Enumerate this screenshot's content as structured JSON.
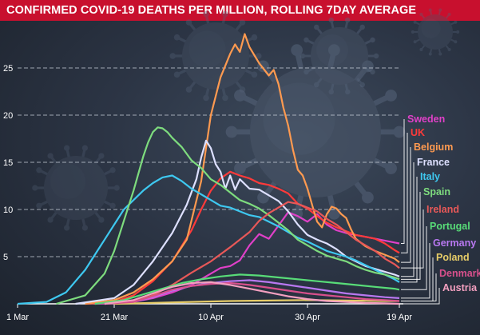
{
  "title": "CONFIRMED COVID-19 DEATHS PER MILLION, ROLLING 7DAY AVERAGE",
  "chart_data": {
    "type": "line",
    "title": "CONFIRMED COVID-19 DEATHS PER MILLION, ROLLING 7DAY AVERAGE",
    "xlabel": "",
    "ylabel": "",
    "x_ticks": [
      {
        "label": "1 Mar",
        "day": 0
      },
      {
        "label": "21 Mar",
        "day": 20
      },
      {
        "label": "10 Apr",
        "day": 40
      },
      {
        "label": "30 Apr",
        "day": 60
      },
      {
        "label": "19 Apr",
        "day": 79
      }
    ],
    "y_ticks": [
      5,
      10,
      15,
      20,
      25
    ],
    "ylim": [
      0,
      29
    ],
    "grid": "horizontal dashed",
    "legend": "right",
    "series": [
      {
        "name": "Sweden",
        "color": "#e040c8",
        "values": [
          [
            16,
            0
          ],
          [
            24,
            0.2
          ],
          [
            28,
            0.6
          ],
          [
            32,
            1.2
          ],
          [
            36,
            2
          ],
          [
            38,
            2.6
          ],
          [
            40,
            3.2
          ],
          [
            42,
            3.8
          ],
          [
            44,
            4
          ],
          [
            46,
            4.6
          ],
          [
            48,
            6.2
          ],
          [
            50,
            7.4
          ],
          [
            52,
            6.9
          ],
          [
            54,
            8.3
          ],
          [
            56,
            9.7
          ],
          [
            58,
            9.3
          ],
          [
            60,
            8.7
          ],
          [
            62,
            9.5
          ],
          [
            64,
            8.4
          ],
          [
            66,
            7.8
          ],
          [
            68,
            7.5
          ],
          [
            70,
            7.3
          ],
          [
            72,
            7.1
          ],
          [
            74,
            6.9
          ],
          [
            76,
            6.7
          ],
          [
            78,
            6.5
          ],
          [
            79,
            6.4
          ]
        ]
      },
      {
        "name": "UK",
        "color": "#ff3a3a",
        "values": [
          [
            14,
            0
          ],
          [
            20,
            0.2
          ],
          [
            24,
            0.9
          ],
          [
            28,
            2.4
          ],
          [
            32,
            4.5
          ],
          [
            36,
            7.8
          ],
          [
            38,
            10
          ],
          [
            40,
            12
          ],
          [
            42,
            13.3
          ],
          [
            44,
            14
          ],
          [
            46,
            13.6
          ],
          [
            48,
            13.3
          ],
          [
            50,
            12.8
          ],
          [
            52,
            12.6
          ],
          [
            54,
            12.2
          ],
          [
            56,
            11.7
          ],
          [
            58,
            10.6
          ],
          [
            60,
            10.1
          ],
          [
            62,
            9.3
          ],
          [
            64,
            8.6
          ],
          [
            66,
            8.1
          ],
          [
            68,
            7.7
          ],
          [
            70,
            7.3
          ],
          [
            72,
            7.1
          ],
          [
            74,
            6.9
          ],
          [
            76,
            6.4
          ],
          [
            78,
            5.7
          ],
          [
            79,
            5.4
          ]
        ]
      },
      {
        "name": "Belgium",
        "color": "#ff9a50",
        "values": [
          [
            14,
            0
          ],
          [
            20,
            0.4
          ],
          [
            24,
            1.2
          ],
          [
            28,
            2.6
          ],
          [
            32,
            4.5
          ],
          [
            35,
            6.8
          ],
          [
            38,
            13
          ],
          [
            40,
            20
          ],
          [
            42,
            24
          ],
          [
            44,
            26.5
          ],
          [
            45,
            27.5
          ],
          [
            46,
            26.7
          ],
          [
            47,
            28.6
          ],
          [
            48,
            27.2
          ],
          [
            50,
            25.5
          ],
          [
            52,
            24.2
          ],
          [
            53,
            24.8
          ],
          [
            54,
            23.3
          ],
          [
            55,
            20.8
          ],
          [
            56,
            18.9
          ],
          [
            57,
            16.3
          ],
          [
            58,
            14.2
          ],
          [
            59,
            13.6
          ],
          [
            60,
            12.2
          ],
          [
            61,
            10.4
          ],
          [
            62,
            8.7
          ],
          [
            63,
            8.1
          ],
          [
            64,
            9.5
          ],
          [
            65,
            10.3
          ],
          [
            66,
            10.1
          ],
          [
            67,
            9.5
          ],
          [
            68,
            9.1
          ],
          [
            69,
            7.9
          ],
          [
            70,
            6.9
          ],
          [
            72,
            6.1
          ],
          [
            74,
            5.6
          ],
          [
            76,
            5.2
          ],
          [
            78,
            4.8
          ],
          [
            79,
            4.4
          ]
        ]
      },
      {
        "name": "France",
        "color": "#dde0ff",
        "values": [
          [
            12,
            0
          ],
          [
            20,
            0.6
          ],
          [
            24,
            2
          ],
          [
            28,
            4.5
          ],
          [
            32,
            7.5
          ],
          [
            35,
            10.5
          ],
          [
            37,
            13.2
          ],
          [
            38,
            15.5
          ],
          [
            39,
            17.3
          ],
          [
            40,
            16.5
          ],
          [
            41,
            14.8
          ],
          [
            42,
            14
          ],
          [
            43,
            12.2
          ],
          [
            44,
            13.6
          ],
          [
            45,
            12.1
          ],
          [
            46,
            13.2
          ],
          [
            48,
            12.2
          ],
          [
            50,
            12.1
          ],
          [
            52,
            11.5
          ],
          [
            54,
            10.9
          ],
          [
            56,
            9.8
          ],
          [
            58,
            8.4
          ],
          [
            60,
            7.3
          ],
          [
            62,
            6.8
          ],
          [
            64,
            6.4
          ],
          [
            66,
            5.8
          ],
          [
            68,
            5
          ],
          [
            70,
            4.5
          ],
          [
            72,
            4
          ],
          [
            74,
            3.7
          ],
          [
            76,
            3.4
          ],
          [
            78,
            3.1
          ],
          [
            79,
            2.9
          ]
        ]
      },
      {
        "name": "Italy",
        "color": "#3ec8f0",
        "values": [
          [
            0,
            0
          ],
          [
            6,
            0.2
          ],
          [
            10,
            1.2
          ],
          [
            14,
            3.6
          ],
          [
            18,
            6.8
          ],
          [
            22,
            10
          ],
          [
            26,
            12
          ],
          [
            28,
            12.8
          ],
          [
            30,
            13.4
          ],
          [
            32,
            13.6
          ],
          [
            34,
            13
          ],
          [
            36,
            12.2
          ],
          [
            38,
            11.6
          ],
          [
            40,
            11
          ],
          [
            42,
            10.4
          ],
          [
            44,
            10.2
          ],
          [
            46,
            9.8
          ],
          [
            48,
            9.4
          ],
          [
            50,
            9.2
          ],
          [
            52,
            8.7
          ],
          [
            54,
            8.2
          ],
          [
            56,
            7.6
          ],
          [
            58,
            7
          ],
          [
            60,
            6.6
          ],
          [
            62,
            6.1
          ],
          [
            64,
            5.6
          ],
          [
            66,
            5.3
          ],
          [
            68,
            5
          ],
          [
            70,
            4.6
          ],
          [
            72,
            4.1
          ],
          [
            74,
            3.6
          ],
          [
            76,
            3.1
          ],
          [
            78,
            2.6
          ],
          [
            79,
            2.3
          ]
        ]
      },
      {
        "name": "Spain",
        "color": "#7edc7e",
        "values": [
          [
            8,
            0
          ],
          [
            14,
            0.9
          ],
          [
            18,
            3.2
          ],
          [
            20,
            5.6
          ],
          [
            22,
            8.8
          ],
          [
            24,
            12
          ],
          [
            26,
            15.6
          ],
          [
            27,
            17.1
          ],
          [
            28,
            18.2
          ],
          [
            29,
            18.7
          ],
          [
            30,
            18.6
          ],
          [
            31,
            18.2
          ],
          [
            32,
            17.6
          ],
          [
            34,
            16.6
          ],
          [
            36,
            15.2
          ],
          [
            38,
            14.4
          ],
          [
            40,
            13.2
          ],
          [
            42,
            12.6
          ],
          [
            44,
            11.8
          ],
          [
            46,
            11
          ],
          [
            48,
            10.6
          ],
          [
            50,
            10.1
          ],
          [
            52,
            9.4
          ],
          [
            54,
            8.6
          ],
          [
            56,
            7.8
          ],
          [
            58,
            6.8
          ],
          [
            60,
            6.2
          ],
          [
            62,
            5.6
          ],
          [
            64,
            5.1
          ],
          [
            66,
            4.8
          ],
          [
            68,
            4.5
          ],
          [
            70,
            4
          ],
          [
            72,
            3.6
          ],
          [
            74,
            3.3
          ],
          [
            76,
            3.1
          ],
          [
            78,
            2.8
          ],
          [
            79,
            2.6
          ]
        ]
      },
      {
        "name": "Ireland",
        "color": "#e85858",
        "values": [
          [
            18,
            0
          ],
          [
            24,
            0.2
          ],
          [
            28,
            0.9
          ],
          [
            32,
            2
          ],
          [
            36,
            3.3
          ],
          [
            40,
            4.5
          ],
          [
            44,
            6
          ],
          [
            48,
            7.6
          ],
          [
            50,
            8.8
          ],
          [
            52,
            9.6
          ],
          [
            54,
            10.2
          ],
          [
            56,
            10.8
          ],
          [
            58,
            10.6
          ],
          [
            60,
            10.2
          ],
          [
            62,
            9.8
          ],
          [
            64,
            9
          ],
          [
            66,
            8.4
          ],
          [
            68,
            7.6
          ],
          [
            70,
            6.8
          ],
          [
            72,
            6.2
          ],
          [
            74,
            5.6
          ],
          [
            76,
            4.8
          ],
          [
            78,
            4.2
          ],
          [
            79,
            3.8
          ]
        ]
      },
      {
        "name": "Portugal",
        "color": "#58dc78",
        "values": [
          [
            16,
            0
          ],
          [
            22,
            0.4
          ],
          [
            26,
            1
          ],
          [
            30,
            1.6
          ],
          [
            34,
            2.2
          ],
          [
            38,
            2.6
          ],
          [
            42,
            2.9
          ],
          [
            46,
            3.1
          ],
          [
            50,
            3
          ],
          [
            54,
            2.8
          ],
          [
            58,
            2.6
          ],
          [
            62,
            2.4
          ],
          [
            66,
            2.2
          ],
          [
            70,
            2
          ],
          [
            74,
            1.8
          ],
          [
            78,
            1.6
          ],
          [
            79,
            1.5
          ]
        ]
      },
      {
        "name": "Germany",
        "color": "#b878f0",
        "values": [
          [
            18,
            0
          ],
          [
            24,
            0.2
          ],
          [
            28,
            0.7
          ],
          [
            32,
            1.4
          ],
          [
            36,
            1.9
          ],
          [
            40,
            2.2
          ],
          [
            44,
            2.4
          ],
          [
            48,
            2.5
          ],
          [
            52,
            2.3
          ],
          [
            56,
            2
          ],
          [
            60,
            1.7
          ],
          [
            64,
            1.4
          ],
          [
            68,
            1.1
          ],
          [
            72,
            0.9
          ],
          [
            76,
            0.7
          ],
          [
            79,
            0.6
          ]
        ]
      },
      {
        "name": "Poland",
        "color": "#e6cc68",
        "values": [
          [
            20,
            0
          ],
          [
            28,
            0.1
          ],
          [
            36,
            0.2
          ],
          [
            44,
            0.3
          ],
          [
            52,
            0.35
          ],
          [
            60,
            0.4
          ],
          [
            68,
            0.35
          ],
          [
            76,
            0.3
          ],
          [
            79,
            0.3
          ]
        ]
      },
      {
        "name": "Denmark",
        "color": "#d8508c",
        "values": [
          [
            18,
            0
          ],
          [
            24,
            0.2
          ],
          [
            28,
            0.8
          ],
          [
            32,
            1.5
          ],
          [
            36,
            1.9
          ],
          [
            40,
            2.1
          ],
          [
            44,
            2.2
          ],
          [
            48,
            2
          ],
          [
            52,
            1.7
          ],
          [
            56,
            1.4
          ],
          [
            60,
            1.1
          ],
          [
            64,
            0.9
          ],
          [
            68,
            0.7
          ],
          [
            72,
            0.5
          ],
          [
            76,
            0.4
          ],
          [
            79,
            0.3
          ]
        ]
      },
      {
        "name": "Austria",
        "color": "#f4a0c0",
        "values": [
          [
            18,
            0
          ],
          [
            24,
            0.4
          ],
          [
            28,
            1.1
          ],
          [
            32,
            1.8
          ],
          [
            36,
            2.2
          ],
          [
            40,
            2.3
          ],
          [
            44,
            2
          ],
          [
            48,
            1.6
          ],
          [
            52,
            1.2
          ],
          [
            56,
            0.8
          ],
          [
            60,
            0.5
          ],
          [
            64,
            0.3
          ],
          [
            68,
            0.2
          ],
          [
            72,
            0.1
          ],
          [
            76,
            0.05
          ],
          [
            79,
            0
          ]
        ]
      }
    ]
  }
}
